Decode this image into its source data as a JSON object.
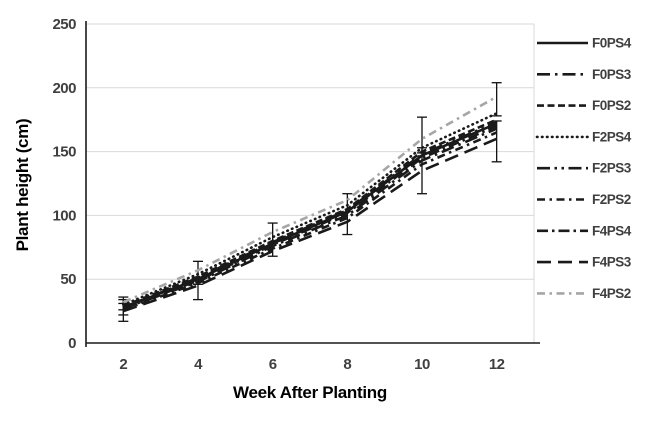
{
  "figure": {
    "xlabel": "Week After Planting",
    "ylabel": "Plant height (cm)"
  },
  "colors": {
    "grid": "#d9d9d9",
    "plot_border": "#d9d9d9",
    "axis": "#1a1a1a",
    "tick_text": "#3f3f3f",
    "error_bar": "#111111"
  },
  "chart_data": {
    "type": "line",
    "x": [
      2,
      4,
      6,
      8,
      10,
      12
    ],
    "x_tick_labels": [
      "2",
      "4",
      "6",
      "8",
      "10",
      "12"
    ],
    "y_ticks": [
      0,
      50,
      100,
      150,
      200,
      250
    ],
    "ylim": [
      0,
      250
    ],
    "xlabel": "Week After Planting",
    "ylabel": "Plant height (cm)",
    "grid": true,
    "legend_position": "right",
    "series": [
      {
        "name": "F0PS4",
        "dash": "solid",
        "color": "#1a1a1a",
        "values": [
          28,
          50,
          78,
          103,
          147,
          172
        ]
      },
      {
        "name": "F0PS3",
        "dash": "long-dash-dot",
        "color": "#1a1a1a",
        "values": [
          27,
          48,
          76,
          100,
          143,
          168
        ]
      },
      {
        "name": "F0PS2",
        "dash": "dash",
        "color": "#1a1a1a",
        "values": [
          29,
          52,
          80,
          105,
          150,
          175
        ]
      },
      {
        "name": "F2PS4",
        "dash": "dot",
        "color": "#1a1a1a",
        "values": [
          30,
          54,
          83,
          108,
          153,
          180
        ]
      },
      {
        "name": "F2PS3",
        "dash": "dash-dot-dot",
        "color": "#1a1a1a",
        "values": [
          28,
          51,
          79,
          104,
          148,
          173
        ]
      },
      {
        "name": "F2PS2",
        "dash": "dash-dot",
        "color": "#1a1a1a",
        "values": [
          26,
          47,
          74,
          98,
          140,
          165
        ]
      },
      {
        "name": "F4PS4",
        "dash": "med-dash-dot",
        "color": "#1a1a1a",
        "values": [
          27,
          49,
          77,
          102,
          145,
          170
        ]
      },
      {
        "name": "F4PS3",
        "dash": "long-dash",
        "color": "#1a1a1a",
        "values": [
          25,
          45,
          72,
          95,
          135,
          160
        ]
      },
      {
        "name": "F4PS2",
        "dash": "dash-dot",
        "color": "#a6a6a6",
        "values": [
          32,
          57,
          87,
          112,
          160,
          193
        ]
      }
    ],
    "error_bars": [
      {
        "x": 2,
        "value": 24,
        "plus_minus": 7
      },
      {
        "x": 2,
        "value": 28,
        "plus_minus": 6
      },
      {
        "x": 2,
        "value": 31,
        "plus_minus": 5
      },
      {
        "x": 4,
        "value": 42,
        "plus_minus": 8
      },
      {
        "x": 4,
        "value": 55,
        "plus_minus": 9
      },
      {
        "x": 6,
        "value": 81,
        "plus_minus": 13
      },
      {
        "x": 8,
        "value": 101,
        "plus_minus": 16
      },
      {
        "x": 10,
        "value": 135,
        "plus_minus": 18
      },
      {
        "x": 10,
        "value": 163,
        "plus_minus": 14
      },
      {
        "x": 12,
        "value": 158,
        "plus_minus": 16
      },
      {
        "x": 12,
        "value": 191,
        "plus_minus": 13
      }
    ]
  }
}
